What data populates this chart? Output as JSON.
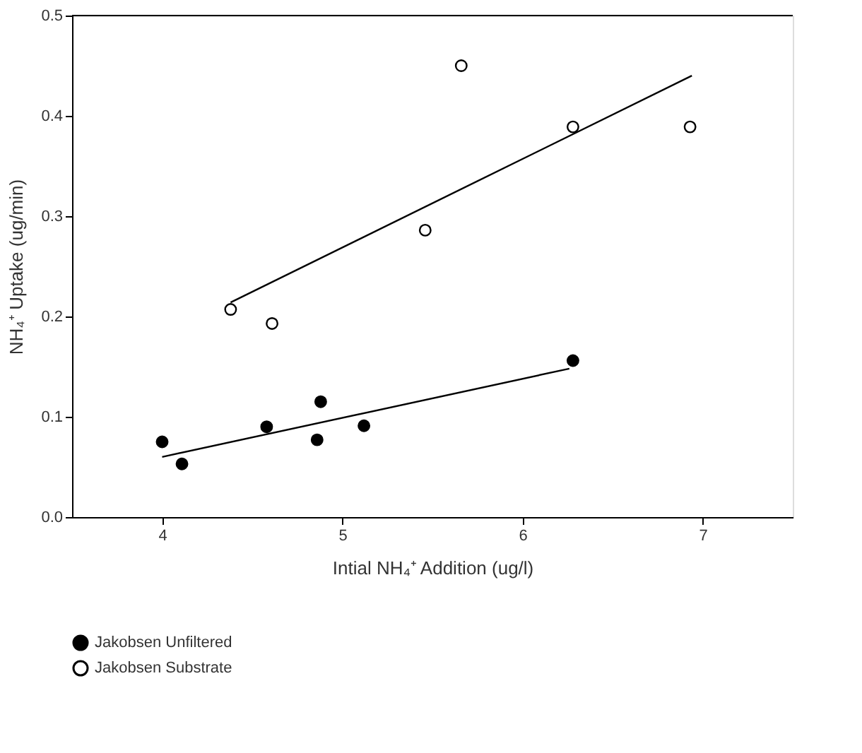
{
  "chart_data": {
    "type": "scatter",
    "xlabel": "Intial NH₄⁺ Addition (ug/l)",
    "ylabel": "NH₄⁺ Uptake (ug/min)",
    "xlim": [
      3.5,
      7.5
    ],
    "xticks": [
      4,
      5,
      6,
      7
    ],
    "ylim": [
      0,
      0.5
    ],
    "yticks": [
      {
        "value": 0,
        "label": "0.0"
      },
      0.1,
      0.2,
      0.3,
      0.4,
      0.5
    ],
    "grid": false,
    "legend": "bottom left",
    "marker": "circle",
    "series": [
      {
        "name": "Jakobsen Unfiltered",
        "color": "#000000",
        "x": [
          4.0,
          4.11,
          4.58,
          4.86,
          4.88,
          5.12,
          6.28
        ],
        "values": [
          0.075,
          0.053,
          0.09,
          0.077,
          0.115,
          0.091,
          0.156
        ]
      },
      {
        "name": "Jakobsen Substrate",
        "color": "#ffffff",
        "x": [
          4.38,
          4.61,
          5.46,
          5.66,
          6.28,
          6.93
        ],
        "values": [
          0.207,
          0.193,
          0.286,
          0.45,
          0.389,
          0.389
        ]
      },
      {
        "type": "line",
        "color": "#000000",
        "marker": "none",
        "line_style": "solid",
        "x": [
          4.0,
          6.26
        ],
        "values": [
          0.06,
          0.148
        ]
      },
      {
        "type": "line",
        "color": "#000000",
        "marker": "none",
        "line_style": "solid",
        "x": [
          4.38,
          6.94
        ],
        "values": [
          0.214,
          0.44
        ]
      }
    ]
  }
}
